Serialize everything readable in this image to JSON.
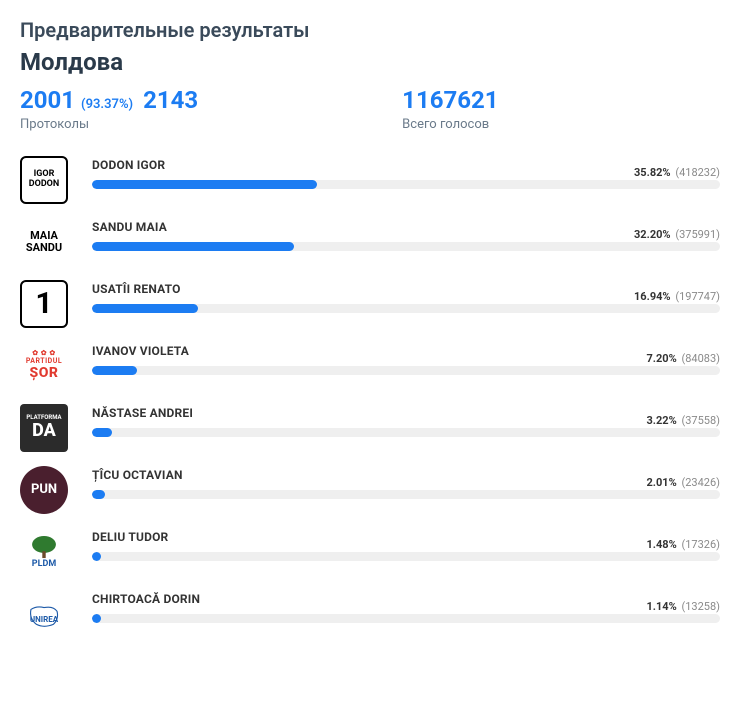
{
  "header": {
    "title": "Предварительные результаты",
    "region": "Молдова",
    "protocols_done": "2001",
    "protocols_pct": "(93.37%)",
    "protocols_total": "2143",
    "protocols_label": "Протоколы",
    "votes_total": "1167621",
    "votes_label": "Всего голосов",
    "primary_color": "#1c7cf2"
  },
  "chart": {
    "type": "horizontal-bar",
    "bar_bg": "#efefef",
    "scale_max_pct": 100,
    "text_color": "#333333",
    "muted_color": "#8a8a8a"
  },
  "candidates": [
    {
      "name": "DODON IGOR",
      "pct": 35.82,
      "pct_label": "35.82%",
      "count": "(418232)",
      "bar_color": "#1c7cf2",
      "logo": {
        "kind": "text-box",
        "text": "IGOR\nDODON",
        "bg": "#ffffff",
        "fg": "#000000",
        "border": true
      }
    },
    {
      "name": "SANDU MAIA",
      "pct": 32.2,
      "pct_label": "32.20%",
      "count": "(375991)",
      "bar_color": "#1c7cf2",
      "logo": {
        "kind": "text-plain",
        "text": "MAIA\nSANDU",
        "fg": "#000000"
      }
    },
    {
      "name": "USATÎI RENATO",
      "pct": 16.94,
      "pct_label": "16.94%",
      "count": "(197747)",
      "bar_color": "#1c7cf2",
      "logo": {
        "kind": "text-box",
        "text": "1",
        "font_size": 30,
        "bg": "#ffffff",
        "fg": "#000000",
        "border": true
      }
    },
    {
      "name": "IVANOV VIOLETA",
      "pct": 7.2,
      "pct_label": "7.20%",
      "count": "(84083)",
      "bar_color": "#1c7cf2",
      "logo": {
        "kind": "sor",
        "text_top": "PARTIDUL",
        "text_bot": "ȘOR",
        "accent": "#e13a2f"
      }
    },
    {
      "name": "NĂSTASE ANDREI",
      "pct": 3.22,
      "pct_label": "3.22%",
      "count": "(37558)",
      "bar_color": "#1c7cf2",
      "logo": {
        "kind": "da",
        "bg": "#2b2b2b",
        "fg": "#ffffff",
        "top": "PLATFORMA",
        "main": "DA"
      }
    },
    {
      "name": "ȚÎCU OCTAVIAN",
      "pct": 2.01,
      "pct_label": "2.01%",
      "count": "(23426)",
      "bar_color": "#1c7cf2",
      "logo": {
        "kind": "pun",
        "bg": "#4a1f2e",
        "fg": "#ffffff",
        "text": "PUN"
      }
    },
    {
      "name": "DELIU TUDOR",
      "pct": 1.48,
      "pct_label": "1.48%",
      "count": "(17326)",
      "bar_color": "#1c7cf2",
      "logo": {
        "kind": "pldm",
        "tree": "#2f7a2f",
        "text": "PLDM",
        "text_color": "#1d5aa8"
      }
    },
    {
      "name": "CHIRTOACĂ DORIN",
      "pct": 1.14,
      "pct_label": "1.14%",
      "count": "(13258)",
      "bar_color": "#1c7cf2",
      "logo": {
        "kind": "unirea",
        "outline": "#1d5aa8",
        "text": "UNIREA"
      }
    }
  ]
}
